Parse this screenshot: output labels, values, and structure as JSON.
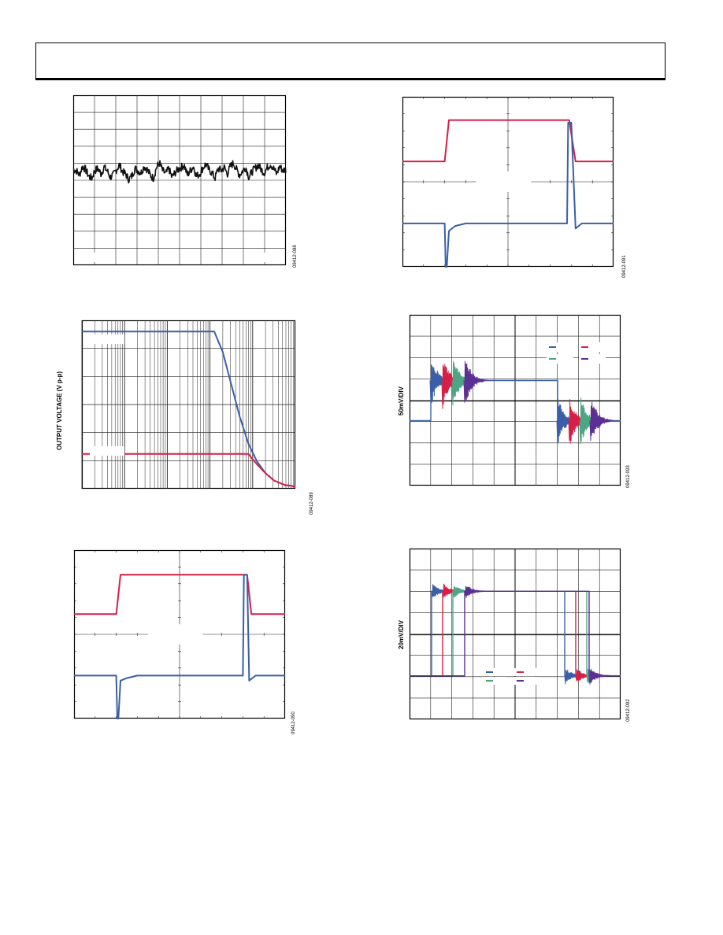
{
  "header": {
    "title": ""
  },
  "colors": {
    "red": "#d61f47",
    "blue": "#3a5fa8",
    "green": "#4ea584",
    "purple": "#5b2f94",
    "black": "#111111",
    "grid": "#222222"
  },
  "figures": [
    {
      "id": "09412-088"
    },
    {
      "id": "09412-091"
    },
    {
      "id": "09412-089"
    },
    {
      "id": "09412-093"
    },
    {
      "id": "09412-090"
    },
    {
      "id": "09412-092"
    }
  ],
  "chart_data": [
    {
      "type": "line",
      "series": [
        {
          "values": [
            0.2,
            0.1,
            -0.3,
            0.5,
            0.2,
            -0.4,
            -0.6,
            0.1,
            0.3,
            -0.2,
            0.4,
            0.1,
            -0.5,
            -0.3,
            0.2,
            0.6,
            0.0,
            -0.2,
            -0.7,
            -0.4,
            0.3,
            0.1,
            -0.1,
            0.5,
            0.2,
            -0.3,
            -0.6,
            0.4,
            0.8,
            0.1,
            -0.2,
            0.3,
            -0.5,
            -0.1,
            0.2,
            0.4,
            0.6,
            -0.3,
            0.1,
            0.5,
            -0.4,
            -0.2,
            0.3,
            0.7,
            0.2,
            -0.1,
            -0.6,
            0.3,
            0.1,
            0.4,
            -0.2,
            0.5,
            0.8,
            0.2,
            -0.3,
            0.1,
            0.4,
            -0.5,
            0.0,
            0.3,
            0.6,
            0.2,
            -0.1,
            0.4,
            0.7,
            0.3,
            -0.2,
            0.5,
            0.1,
            0.2
          ]
        }
      ],
      "grid": true
    },
    {
      "type": "line",
      "series": [
        {
          "name": "red",
          "x": [
            0,
            0.2,
            0.22,
            0.79,
            0.82,
            1.0
          ],
          "values": [
            0,
            0,
            2.1,
            2.1,
            0,
            0
          ]
        },
        {
          "name": "blue",
          "x": [
            0,
            0.2,
            0.205,
            0.21,
            0.22,
            0.25,
            0.3,
            0.78,
            0.785,
            0.8,
            0.82,
            0.85,
            1.0
          ],
          "values": [
            0,
            0,
            -2.0,
            -2.0,
            -0.3,
            -0.1,
            0,
            0,
            4.0,
            4.0,
            -0.2,
            0,
            0
          ]
        }
      ],
      "grid": true
    },
    {
      "type": "line",
      "series": [
        {
          "name": "blue",
          "x": [
            0.0,
            0.62,
            0.66,
            0.7,
            0.74,
            0.78,
            0.82,
            0.86,
            0.9,
            0.95,
            1.0
          ],
          "values": [
            5.3,
            5.3,
            4.6,
            3.5,
            2.4,
            1.5,
            0.9,
            0.5,
            0.25,
            0.1,
            0.05
          ]
        },
        {
          "name": "red",
          "x": [
            0.0,
            0.78,
            0.82,
            0.86,
            0.9,
            0.95,
            1.0
          ],
          "values": [
            1.15,
            1.15,
            0.8,
            0.5,
            0.25,
            0.1,
            0.05
          ]
        }
      ],
      "ylabel": "OUTPUT VOLTAGE (V p-p)",
      "xscale": "log",
      "grid": true
    },
    {
      "type": "line",
      "series": [
        {
          "name": "blue",
          "upper_level": 0.3,
          "lower_level": -0.2
        },
        {
          "name": "red"
        },
        {
          "name": "green"
        },
        {
          "name": "purple"
        }
      ],
      "ylabel": "50mV/DIV",
      "grid": true
    },
    {
      "type": "line",
      "series": [
        {
          "name": "red",
          "x": [
            0,
            0.2,
            0.22,
            0.82,
            0.84,
            1.0
          ],
          "values": [
            0,
            0,
            2.0,
            2.0,
            0,
            0
          ]
        },
        {
          "name": "blue",
          "x": [
            0,
            0.2,
            0.205,
            0.21,
            0.22,
            0.25,
            0.3,
            0.8,
            0.805,
            0.82,
            0.83,
            0.86,
            1.0
          ],
          "values": [
            0,
            0,
            -2.2,
            -2.2,
            -0.2,
            -0.1,
            0,
            0,
            4.0,
            4.0,
            -0.2,
            0,
            0
          ]
        }
      ],
      "grid": true
    },
    {
      "type": "line",
      "series": [
        {
          "name": "blue"
        },
        {
          "name": "red"
        },
        {
          "name": "green"
        },
        {
          "name": "purple"
        }
      ],
      "ylabel": "20mV/DIV",
      "grid": true
    }
  ]
}
